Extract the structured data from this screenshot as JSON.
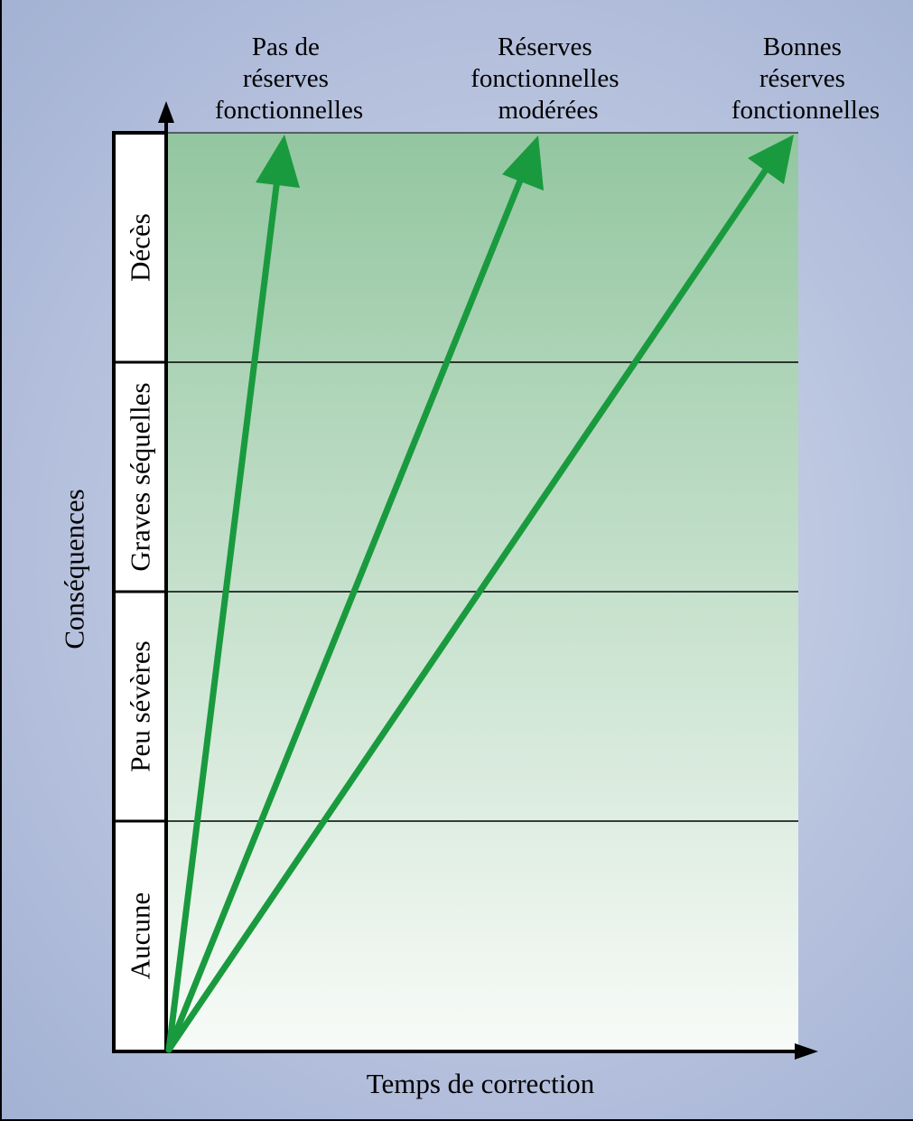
{
  "diagram": {
    "y_axis_label": "Conséquences",
    "x_axis_label": "Temps de correction",
    "levels": [
      {
        "label": "Aucune"
      },
      {
        "label": "Peu sévères"
      },
      {
        "label": "Graves séquelles"
      },
      {
        "label": "Décès"
      }
    ],
    "arrows": [
      {
        "name": "no-reserve",
        "label_lines": [
          "Pas de",
          "réserves",
          "fonctionnelles"
        ]
      },
      {
        "name": "moderate-reserve",
        "label_lines": [
          "Réserves",
          "fonctionnelles",
          "modérées"
        ]
      },
      {
        "name": "good-reserve",
        "label_lines": [
          "Bonnes",
          "réserves",
          "fonctionnelles"
        ]
      }
    ],
    "colors": {
      "arrow": "#1a9a3e",
      "area_top": "#93c6a0",
      "area_bottom": "#f8fbf8",
      "background": "#b8c3de"
    }
  }
}
